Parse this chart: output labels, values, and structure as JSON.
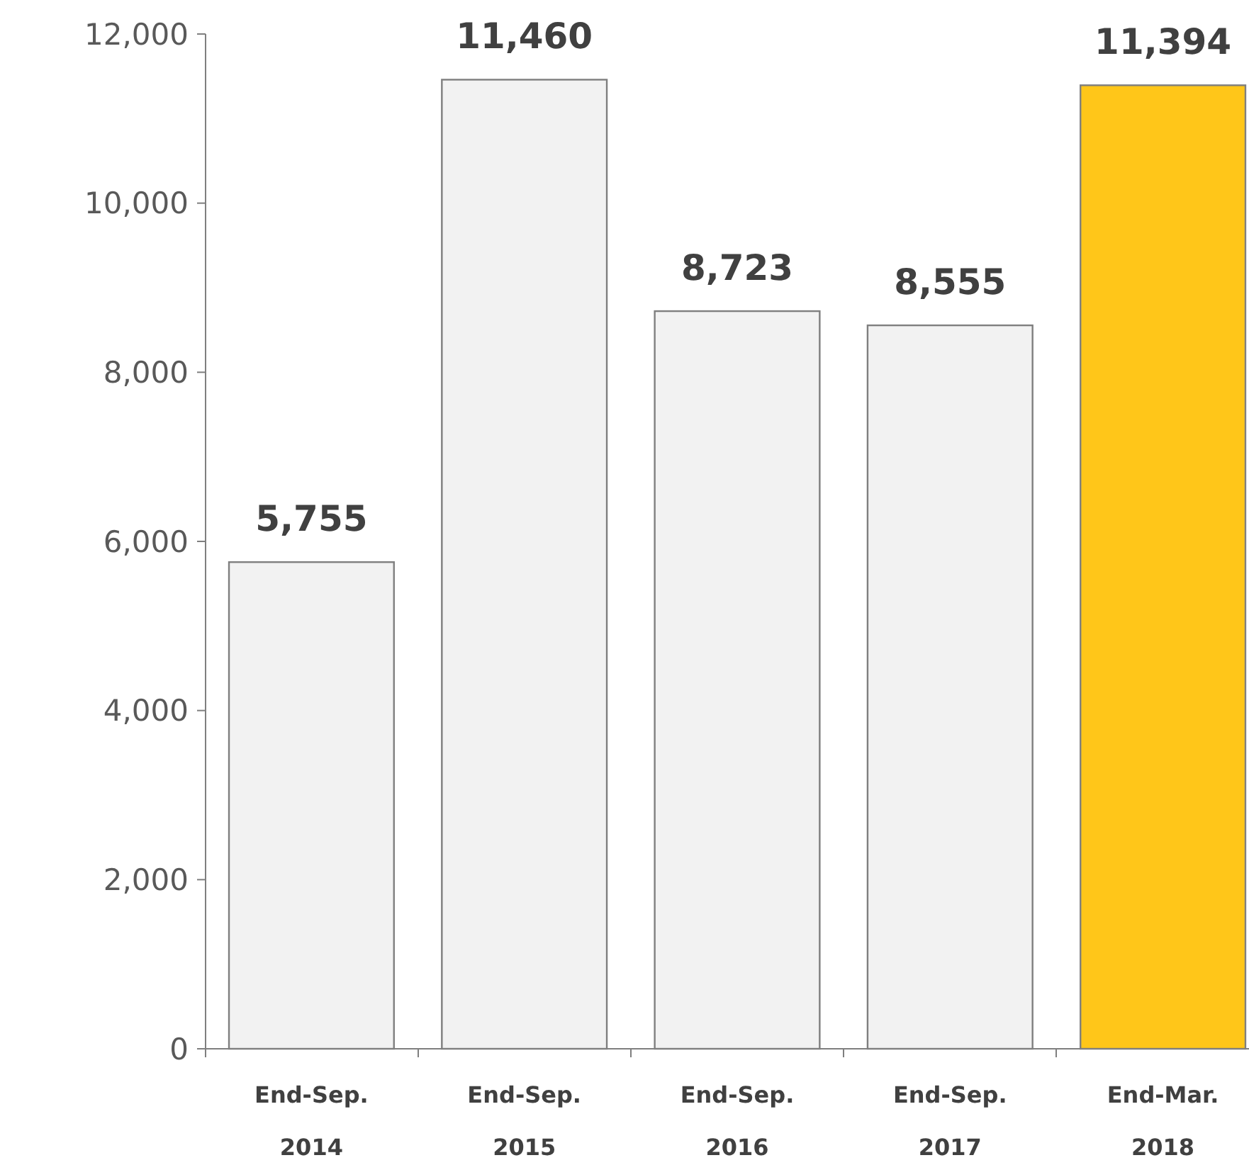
{
  "chart_data": {
    "type": "bar",
    "categories": [
      "End-Sep. 2014",
      "End-Sep. 2015",
      "End-Sep. 2016",
      "End-Sep. 2017",
      "End-Mar. 2018"
    ],
    "values": [
      5755,
      11460,
      8723,
      8555,
      11394
    ],
    "colors": [
      "#f2f2f2",
      "#f2f2f2",
      "#f2f2f2",
      "#f2f2f2",
      "#ffc619"
    ],
    "ylim": [
      0,
      12000
    ],
    "yticks": [
      {
        "value": 0,
        "label": "0"
      },
      {
        "value": 2000,
        "label": "2,000"
      },
      {
        "value": 4000,
        "label": "4,000"
      },
      {
        "value": 6000,
        "label": "6,000"
      },
      {
        "value": 8000,
        "label": "8,000"
      },
      {
        "value": 10000,
        "label": "10,000"
      },
      {
        "value": 12000,
        "label": "12,000"
      }
    ],
    "value_labels": [
      "5,755",
      "11,460",
      "8,723",
      "8,555",
      "11,394"
    ],
    "grid": false
  }
}
